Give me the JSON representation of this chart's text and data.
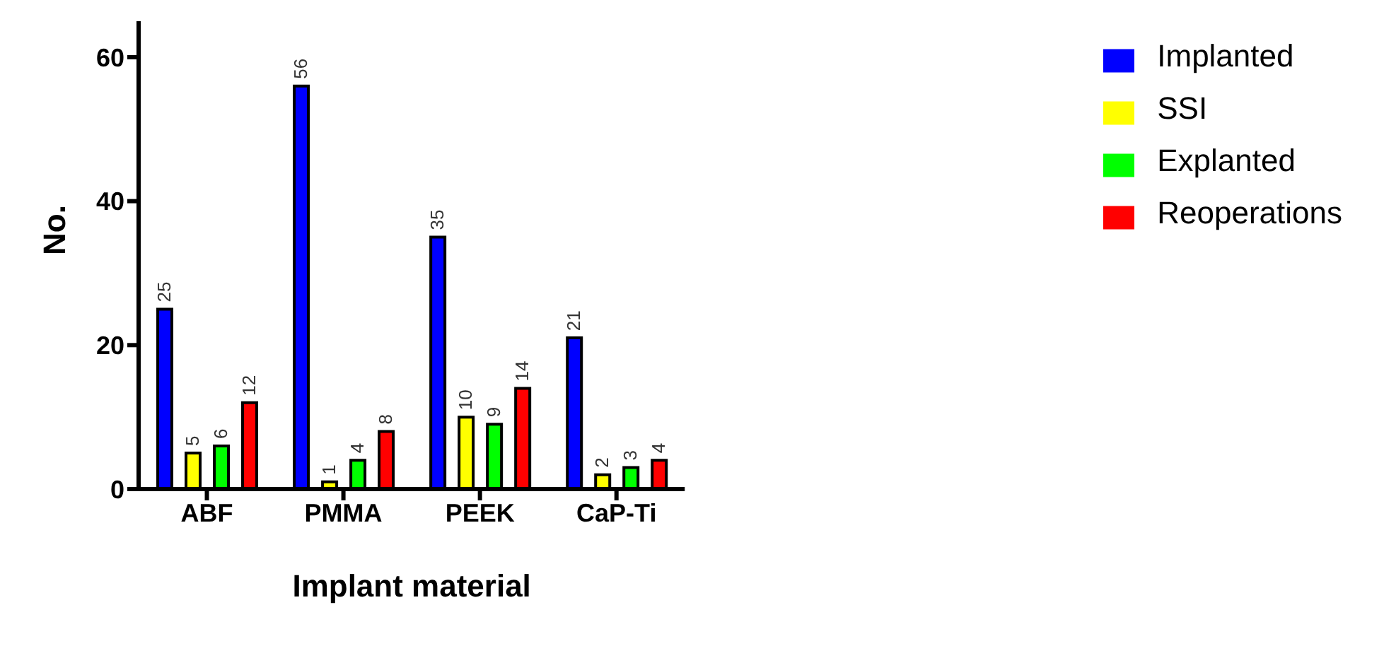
{
  "chart_data": {
    "type": "bar",
    "xlabel": "Implant material",
    "ylabel": "No.",
    "categories": [
      "ABF",
      "PMMA",
      "PEEK",
      "CaP-Ti"
    ],
    "series": [
      {
        "name": "Implanted",
        "color": "#0000ff",
        "values": [
          25,
          56,
          35,
          21
        ]
      },
      {
        "name": "SSI",
        "color": "#ffff00",
        "values": [
          5,
          1,
          10,
          2
        ]
      },
      {
        "name": "Explanted",
        "color": "#00ff00",
        "values": [
          6,
          4,
          9,
          3
        ]
      },
      {
        "name": "Reoperations",
        "color": "#ff0000",
        "values": [
          12,
          8,
          14,
          4
        ]
      }
    ],
    "ylim": [
      0,
      65
    ],
    "yticks": [
      0,
      20,
      40,
      60
    ],
    "grid": false,
    "legend": "top right",
    "data_labels": true
  }
}
